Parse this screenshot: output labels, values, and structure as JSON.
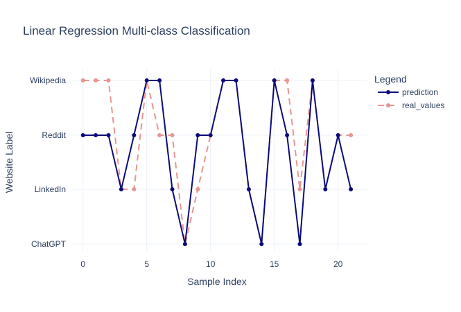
{
  "chart_data": {
    "type": "line",
    "title": "Linear Regression Multi-class Classification",
    "xlabel": "Sample Index",
    "ylabel": "Website Label",
    "xlim": [
      -0.8,
      22.3
    ],
    "x_ticks": [
      0,
      5,
      10,
      15,
      20
    ],
    "categories_y": [
      "ChatGPT",
      "LinkedIn",
      "Reddit",
      "Wikipedia"
    ],
    "grid": true,
    "legend": {
      "title": "Legend",
      "placement": "right"
    },
    "x": [
      0,
      1,
      2,
      3,
      4,
      5,
      6,
      7,
      8,
      9,
      10,
      11,
      12,
      13,
      14,
      15,
      16,
      17,
      18,
      19,
      20,
      21
    ],
    "series": [
      {
        "name": "prediction",
        "color": "#0a0a7a",
        "dash": "solid",
        "values": [
          "Reddit",
          "Reddit",
          "Reddit",
          "LinkedIn",
          "Reddit",
          "Wikipedia",
          "Wikipedia",
          "LinkedIn",
          "ChatGPT",
          "Reddit",
          "Reddit",
          "Wikipedia",
          "Wikipedia",
          "LinkedIn",
          "ChatGPT",
          "Wikipedia",
          "Reddit",
          "ChatGPT",
          "Wikipedia",
          "LinkedIn",
          "Reddit",
          "LinkedIn"
        ]
      },
      {
        "name": "real_values",
        "color": "#e8958f",
        "dash": "dashed",
        "values": [
          "Wikipedia",
          "Wikipedia",
          "Wikipedia",
          "LinkedIn",
          "LinkedIn",
          "Wikipedia",
          "Reddit",
          "Reddit",
          "ChatGPT",
          "LinkedIn",
          "Reddit",
          "Wikipedia",
          "Wikipedia",
          "LinkedIn",
          "ChatGPT",
          "Wikipedia",
          "Wikipedia",
          "LinkedIn",
          "Wikipedia",
          "LinkedIn",
          "Reddit",
          "Reddit"
        ]
      }
    ]
  }
}
